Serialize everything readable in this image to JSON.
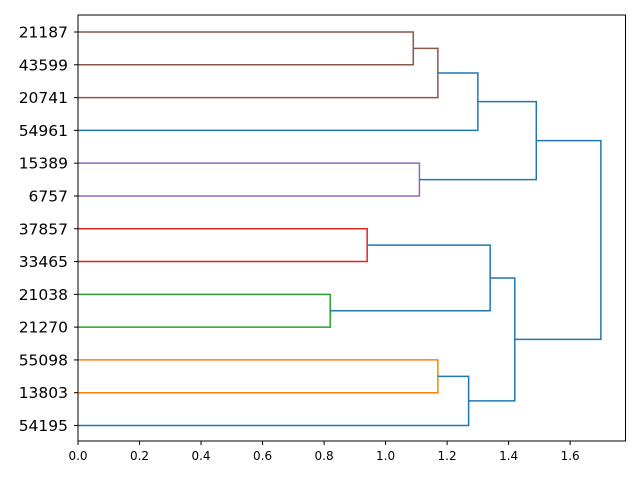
{
  "chart_data": {
    "type": "dendrogram",
    "orientation": "left",
    "title": "",
    "xlabel": "",
    "ylabel": "",
    "xlim": [
      0,
      1.78
    ],
    "x_ticks": [
      "0.0",
      "0.2",
      "0.4",
      "0.6",
      "0.8",
      "1.0",
      "1.2",
      "1.4",
      "1.6"
    ],
    "leaves": [
      "21187",
      "43599",
      "20741",
      "54961",
      "15389",
      "6757",
      "37857",
      "33465",
      "21038",
      "21270",
      "55098",
      "13803",
      "54195"
    ],
    "colors": {
      "brown": "#8c564b",
      "purple": "#9467bd",
      "red": "#d62728",
      "green": "#2ca02c",
      "orange": "#ff7f0e",
      "above_threshold": "#1f77b4",
      "axis": "#000000"
    },
    "merges": [
      {
        "left": "21187",
        "right": "43599",
        "height": 1.09,
        "color": "brown"
      },
      {
        "left": "21187+43599",
        "right": "20741",
        "height": 1.17,
        "color": "brown"
      },
      {
        "left": "21187+43599+20741",
        "right": "54961",
        "height": 1.3,
        "color": "above_threshold"
      },
      {
        "left": "15389",
        "right": "6757",
        "height": 1.11,
        "color": "purple"
      },
      {
        "left": "21187+43599+20741+54961",
        "right": "15389+6757",
        "height": 1.49,
        "color": "above_threshold"
      },
      {
        "left": "37857",
        "right": "33465",
        "height": 0.94,
        "color": "red"
      },
      {
        "left": "21038",
        "right": "21270",
        "height": 0.82,
        "color": "green"
      },
      {
        "left": "37857+33465",
        "right": "21038+21270",
        "height": 1.34,
        "color": "above_threshold"
      },
      {
        "left": "55098",
        "right": "13803",
        "height": 1.17,
        "color": "orange"
      },
      {
        "left": "55098+13803",
        "right": "54195",
        "height": 1.27,
        "color": "above_threshold"
      },
      {
        "left": "37857+33465+21038+21270",
        "right": "55098+13803+54195",
        "height": 1.42,
        "color": "above_threshold"
      },
      {
        "left": "21187+43599+20741+54961+15389+6757",
        "right": "37857+33465+21038+21270+55098+13803+54195",
        "height": 1.7,
        "color": "above_threshold"
      }
    ]
  }
}
